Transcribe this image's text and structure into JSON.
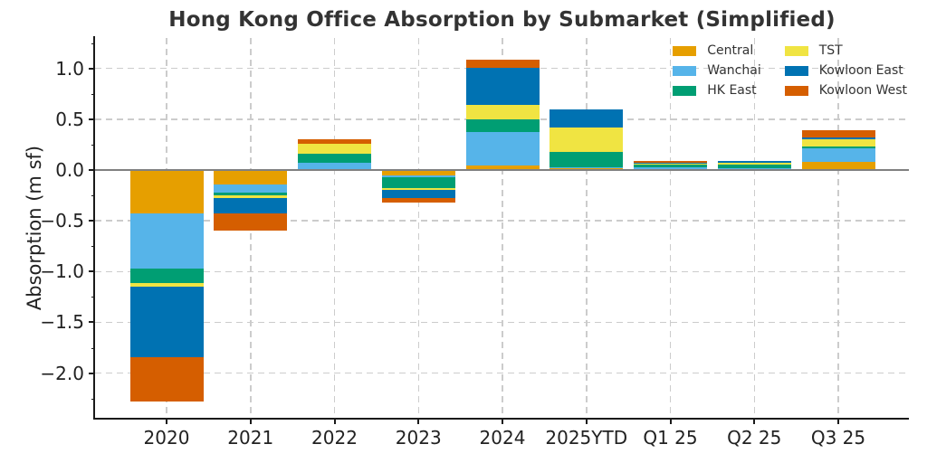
{
  "title": "Hong Kong Office Absorption by Submarket (Simplified)",
  "chart_data": {
    "type": "bar",
    "stacked": true,
    "title": "Hong Kong Office Absorption by Submarket (Simplified)",
    "xlabel": "",
    "ylabel": "Absorption (m sf)",
    "categories": [
      "2020",
      "2021",
      "2022",
      "2023",
      "2024",
      "2025YTD",
      "Q1 25",
      "Q2 25",
      "Q3 25"
    ],
    "series": [
      {
        "name": "Central",
        "color": "#E69F00",
        "values": [
          -0.43,
          -0.14,
          0.0,
          -0.05,
          0.04,
          0.02,
          0.0,
          0.0,
          0.08
        ]
      },
      {
        "name": "Wanchai",
        "color": "#56B4E9",
        "values": [
          -0.54,
          -0.08,
          0.07,
          -0.02,
          0.33,
          0.01,
          0.03,
          0.02,
          0.13
        ]
      },
      {
        "name": "HK East",
        "color": "#009E73",
        "values": [
          -0.14,
          -0.03,
          0.09,
          -0.11,
          0.13,
          0.15,
          0.02,
          0.03,
          0.02
        ]
      },
      {
        "name": "TST",
        "color": "#F0E442",
        "values": [
          -0.04,
          -0.03,
          0.1,
          -0.02,
          0.14,
          0.24,
          0.01,
          0.02,
          0.07
        ]
      },
      {
        "name": "Kowloon East",
        "color": "#0072B2",
        "values": [
          -0.69,
          -0.15,
          0.0,
          -0.08,
          0.37,
          0.18,
          0.01,
          0.02,
          0.02
        ]
      },
      {
        "name": "Kowloon West",
        "color": "#D55E00",
        "values": [
          -0.44,
          -0.17,
          0.04,
          -0.04,
          0.08,
          0.0,
          0.02,
          0.0,
          0.07
        ]
      }
    ],
    "bar_totals": [
      -2.28,
      -0.6,
      0.3,
      -0.32,
      1.09,
      0.6,
      0.09,
      0.09,
      0.39
    ],
    "ylim": [
      -2.44,
      1.3
    ],
    "yticks": [
      {
        "v": 1.0,
        "label": "1.0"
      },
      {
        "v": 0.5,
        "label": "0.5"
      },
      {
        "v": 0.0,
        "label": "0.0"
      },
      {
        "v": -0.5,
        "label": "−0.5"
      },
      {
        "v": -1.0,
        "label": "−1.0"
      },
      {
        "v": -1.5,
        "label": "−1.5"
      },
      {
        "v": -2.0,
        "label": "−2.0"
      }
    ],
    "grid": true,
    "zero_line_color": "#808080",
    "grid_color": "#cccccc",
    "legend_position": "top-right",
    "legend_columns": [
      [
        "Central",
        "Wanchai",
        "HK East"
      ],
      [
        "TST",
        "Kowloon East",
        "Kowloon West"
      ]
    ]
  }
}
